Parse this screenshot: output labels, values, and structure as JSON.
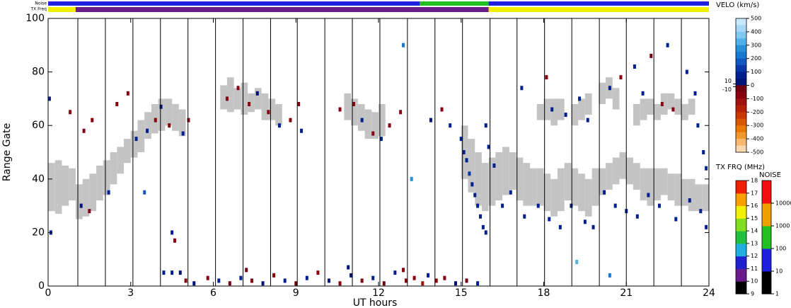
{
  "chart_data": {
    "type": "range-time",
    "xlabel": "UT hours",
    "ylabel": "Range Gate",
    "xlim": [
      0,
      24
    ],
    "ylim": [
      0,
      100
    ],
    "xticks": [
      0,
      3,
      6,
      9,
      12,
      15,
      18,
      21,
      24
    ],
    "yticks": [
      0,
      20,
      40,
      60,
      80,
      100
    ],
    "hour_lines": [
      1.08,
      2.08,
      3.08,
      4.08,
      5.08,
      6.08,
      7.08,
      8.08,
      9.05,
      10.05,
      11.05,
      12.05,
      13.05,
      14.05,
      15.05,
      16.05,
      17.03,
      18.03,
      19.02,
      20.02,
      21.0,
      22.0,
      23.0
    ],
    "noise_bar": {
      "label": "Noise",
      "segments": [
        [
          0,
          13.5,
          30
        ],
        [
          13.5,
          16,
          200
        ],
        [
          16,
          24,
          30
        ]
      ]
    },
    "txfreq_bar": {
      "label": "TX Freq",
      "segments": [
        [
          0,
          1,
          15.5
        ],
        [
          1,
          16,
          10.5
        ],
        [
          16,
          24,
          15.5
        ]
      ]
    },
    "ground_scatter": {
      "color": "#c4c4c4",
      "strip_width": 0.25,
      "strips": [
        [
          0.0,
          28,
          46
        ],
        [
          0.25,
          27,
          47
        ],
        [
          0.5,
          30,
          45
        ],
        [
          0.75,
          32,
          44
        ],
        [
          1.0,
          25,
          38
        ],
        [
          1.25,
          26,
          40
        ],
        [
          1.5,
          28,
          42
        ],
        [
          1.75,
          32,
          45
        ],
        [
          2.0,
          34,
          47
        ],
        [
          2.25,
          38,
          50
        ],
        [
          2.5,
          42,
          52
        ],
        [
          2.75,
          46,
          55
        ],
        [
          3.0,
          48,
          58
        ],
        [
          3.25,
          50,
          62
        ],
        [
          3.5,
          55,
          65
        ],
        [
          3.75,
          57,
          68
        ],
        [
          4.0,
          58,
          70
        ],
        [
          4.25,
          60,
          70
        ],
        [
          4.5,
          58,
          68
        ],
        [
          4.75,
          56,
          66
        ],
        [
          6.25,
          66,
          75
        ],
        [
          6.5,
          65,
          78
        ],
        [
          6.75,
          66,
          74
        ],
        [
          7.0,
          64,
          76
        ],
        [
          7.25,
          65,
          72
        ],
        [
          7.5,
          66,
          74
        ],
        [
          7.75,
          62,
          72
        ],
        [
          8.0,
          62,
          70
        ],
        [
          8.25,
          60,
          68
        ],
        [
          10.75,
          62,
          72
        ],
        [
          11.0,
          60,
          70
        ],
        [
          11.25,
          58,
          68
        ],
        [
          11.5,
          55,
          66
        ],
        [
          11.75,
          55,
          65
        ],
        [
          12.0,
          56,
          68
        ],
        [
          15.0,
          40,
          60
        ],
        [
          15.25,
          35,
          55
        ],
        [
          15.5,
          30,
          50
        ],
        [
          15.75,
          28,
          46
        ],
        [
          16.0,
          30,
          48
        ],
        [
          16.25,
          32,
          50
        ],
        [
          16.5,
          34,
          52
        ],
        [
          16.75,
          36,
          50
        ],
        [
          17.0,
          32,
          48
        ],
        [
          17.25,
          30,
          46
        ],
        [
          17.5,
          30,
          44
        ],
        [
          17.75,
          30,
          44
        ],
        [
          18.0,
          28,
          42
        ],
        [
          18.25,
          26,
          40
        ],
        [
          18.5,
          28,
          44
        ],
        [
          18.75,
          32,
          46
        ],
        [
          19.0,
          30,
          44
        ],
        [
          19.25,
          28,
          42
        ],
        [
          19.5,
          26,
          40
        ],
        [
          19.75,
          30,
          44
        ],
        [
          20.0,
          34,
          44
        ],
        [
          20.25,
          36,
          46
        ],
        [
          20.5,
          38,
          48
        ],
        [
          20.75,
          40,
          50
        ],
        [
          21.0,
          38,
          48
        ],
        [
          21.25,
          36,
          46
        ],
        [
          21.5,
          32,
          44
        ],
        [
          21.75,
          30,
          44
        ],
        [
          22.0,
          32,
          44
        ],
        [
          22.25,
          34,
          44
        ],
        [
          22.5,
          32,
          42
        ],
        [
          22.75,
          30,
          42
        ],
        [
          23.0,
          30,
          40
        ],
        [
          23.25,
          28,
          40
        ],
        [
          23.5,
          28,
          38
        ],
        [
          23.75,
          28,
          38
        ],
        [
          17.75,
          62,
          68
        ],
        [
          18.0,
          62,
          70
        ],
        [
          18.25,
          60,
          70
        ],
        [
          18.5,
          62,
          70
        ],
        [
          19.0,
          60,
          68
        ],
        [
          19.25,
          62,
          70
        ],
        [
          19.5,
          64,
          72
        ],
        [
          20.0,
          68,
          76
        ],
        [
          20.25,
          70,
          78
        ],
        [
          20.5,
          66,
          74
        ],
        [
          21.25,
          60,
          68
        ],
        [
          21.5,
          62,
          70
        ],
        [
          21.75,
          64,
          70
        ],
        [
          22.0,
          62,
          68
        ],
        [
          22.25,
          64,
          72
        ],
        [
          22.5,
          66,
          72
        ],
        [
          22.75,
          64,
          70
        ],
        [
          23.0,
          62,
          68
        ],
        [
          23.25,
          64,
          70
        ]
      ]
    },
    "velocity_points": [
      [
        4.2,
        5,
        60
      ],
      [
        4.5,
        5,
        80
      ],
      [
        4.8,
        5,
        50
      ],
      [
        5.0,
        2,
        -60
      ],
      [
        5.3,
        1,
        40
      ],
      [
        5.8,
        3,
        -80
      ],
      [
        6.2,
        2,
        60
      ],
      [
        6.6,
        1,
        -40
      ],
      [
        7.0,
        3,
        70
      ],
      [
        7.4,
        2,
        -90
      ],
      [
        7.8,
        1,
        50
      ],
      [
        8.2,
        4,
        -60
      ],
      [
        8.6,
        2,
        80
      ],
      [
        9.0,
        1,
        -50
      ],
      [
        9.4,
        3,
        60
      ],
      [
        9.8,
        5,
        -70
      ],
      [
        10.2,
        2,
        40
      ],
      [
        10.6,
        1,
        -80
      ],
      [
        11.0,
        4,
        50
      ],
      [
        11.4,
        2,
        -60
      ],
      [
        11.8,
        3,
        90
      ],
      [
        12.2,
        1,
        -40
      ],
      [
        12.6,
        5,
        60
      ],
      [
        13.0,
        2,
        -70
      ],
      [
        13.3,
        3,
        -90
      ],
      [
        13.6,
        1,
        -120
      ],
      [
        13.8,
        4,
        80
      ],
      [
        14.1,
        2,
        -60
      ],
      [
        14.4,
        3,
        -80
      ],
      [
        14.8,
        1,
        50
      ],
      [
        15.2,
        2,
        -40
      ],
      [
        15.6,
        1,
        60
      ],
      [
        12.9,
        6,
        -50
      ],
      [
        10.9,
        7,
        40
      ],
      [
        7.2,
        6,
        -30
      ],
      [
        0.1,
        20,
        60
      ],
      [
        0.05,
        70,
        60
      ],
      [
        0.8,
        65,
        -60
      ],
      [
        1.3,
        58,
        -80
      ],
      [
        1.6,
        62,
        -70
      ],
      [
        1.2,
        30,
        50
      ],
      [
        1.5,
        28,
        -70
      ],
      [
        2.2,
        35,
        60
      ],
      [
        2.5,
        68,
        -60
      ],
      [
        2.9,
        72,
        -90
      ],
      [
        3.2,
        55,
        60
      ],
      [
        3.6,
        58,
        70
      ],
      [
        3.9,
        62,
        -60
      ],
      [
        4.1,
        67,
        50
      ],
      [
        4.4,
        60,
        -70
      ],
      [
        4.6,
        17,
        -80
      ],
      [
        4.5,
        20,
        60
      ],
      [
        4.9,
        57,
        60
      ],
      [
        5.1,
        62,
        -50
      ],
      [
        6.5,
        70,
        -90
      ],
      [
        6.9,
        74,
        -60
      ],
      [
        7.3,
        68,
        -70
      ],
      [
        7.6,
        72,
        50
      ],
      [
        8.0,
        65,
        -80
      ],
      [
        8.4,
        60,
        60
      ],
      [
        8.8,
        62,
        -90
      ],
      [
        9.2,
        58,
        70
      ],
      [
        9.1,
        68,
        -60
      ],
      [
        10.6,
        66,
        -80
      ],
      [
        11.1,
        68,
        -60
      ],
      [
        11.4,
        62,
        60
      ],
      [
        11.8,
        57,
        -70
      ],
      [
        12.1,
        55,
        60
      ],
      [
        12.4,
        60,
        -60
      ],
      [
        12.8,
        65,
        -90
      ],
      [
        13.9,
        62,
        50
      ],
      [
        14.3,
        66,
        -60
      ],
      [
        14.6,
        60,
        60
      ],
      [
        15.0,
        55,
        80
      ],
      [
        15.1,
        50,
        100
      ],
      [
        15.2,
        47,
        90
      ],
      [
        15.3,
        42,
        120
      ],
      [
        15.4,
        38,
        100
      ],
      [
        15.5,
        34,
        90
      ],
      [
        15.6,
        30,
        80
      ],
      [
        15.7,
        26,
        90
      ],
      [
        15.8,
        22,
        70
      ],
      [
        15.9,
        20,
        60
      ],
      [
        15.9,
        60,
        90
      ],
      [
        16.0,
        52,
        80
      ],
      [
        16.2,
        45,
        70
      ],
      [
        16.5,
        30,
        60
      ],
      [
        16.8,
        35,
        70
      ],
      [
        17.3,
        26,
        80
      ],
      [
        17.8,
        30,
        70
      ],
      [
        18.2,
        25,
        80
      ],
      [
        18.6,
        22,
        90
      ],
      [
        19.0,
        30,
        60
      ],
      [
        19.5,
        24,
        80
      ],
      [
        19.8,
        22,
        70
      ],
      [
        20.2,
        35,
        60
      ],
      [
        20.6,
        30,
        70
      ],
      [
        21.0,
        28,
        90
      ],
      [
        21.4,
        26,
        80
      ],
      [
        21.8,
        34,
        60
      ],
      [
        22.2,
        30,
        70
      ],
      [
        22.8,
        25,
        60
      ],
      [
        23.3,
        32,
        80
      ],
      [
        23.7,
        28,
        70
      ],
      [
        23.9,
        22,
        60
      ],
      [
        17.2,
        74,
        80
      ],
      [
        18.3,
        66,
        70
      ],
      [
        18.8,
        64,
        60
      ],
      [
        19.3,
        70,
        90
      ],
      [
        19.6,
        62,
        80
      ],
      [
        20.4,
        74,
        70
      ],
      [
        20.8,
        78,
        -80
      ],
      [
        21.6,
        72,
        60
      ],
      [
        22.3,
        68,
        -60
      ],
      [
        22.7,
        66,
        -90
      ],
      [
        23.2,
        80,
        80
      ],
      [
        23.5,
        72,
        70
      ],
      [
        23.6,
        60,
        90
      ],
      [
        23.8,
        50,
        80
      ],
      [
        23.9,
        44,
        100
      ],
      [
        22.5,
        90,
        70
      ],
      [
        21.3,
        82,
        60
      ],
      [
        21.9,
        86,
        -40
      ],
      [
        18.1,
        78,
        -60
      ],
      [
        13.2,
        40,
        300
      ],
      [
        12.9,
        90,
        250
      ],
      [
        3.5,
        35,
        200
      ],
      [
        19.2,
        9,
        350
      ],
      [
        20.4,
        4,
        250
      ]
    ],
    "velo_scale": {
      "title": "VELO (km/s)",
      "lim": [
        -500,
        500
      ],
      "ticks": [
        500,
        400,
        300,
        200,
        100,
        10,
        0,
        -10,
        -100,
        -200,
        -300,
        -400,
        -500
      ],
      "colors": [
        "#c8e8ff",
        "#a8d8f8",
        "#80c8f0",
        "#50b0e8",
        "#2890d8",
        "#1878d0",
        "#1058c0",
        "#0838a8",
        "#002090",
        "#001478",
        "#700010",
        "#880010",
        "#a01010",
        "#b82008",
        "#c83800",
        "#d85800",
        "#e87800",
        "#f09830",
        "#f8b870",
        "#fcd8b0"
      ]
    },
    "txfreq_scale": {
      "title": "TX FRQ (MHz)",
      "lim": [
        9,
        18
      ],
      "ticks": [
        9,
        10,
        11,
        12,
        13,
        14,
        15,
        16,
        17,
        18
      ],
      "colors": [
        "#000000",
        "#6a1a8a",
        "#2020d0",
        "#20b0e0",
        "#20c040",
        "#80e020",
        "#f0f000",
        "#f8a000",
        "#f02000"
      ]
    },
    "noise_scale": {
      "title": "NOISE",
      "lim": [
        1,
        100000
      ],
      "log": true,
      "ticks": [
        1,
        10,
        100,
        1000,
        10000
      ],
      "colors": [
        "#000000",
        "#2020e0",
        "#20c020",
        "#f0a000",
        "#f01010"
      ]
    }
  }
}
